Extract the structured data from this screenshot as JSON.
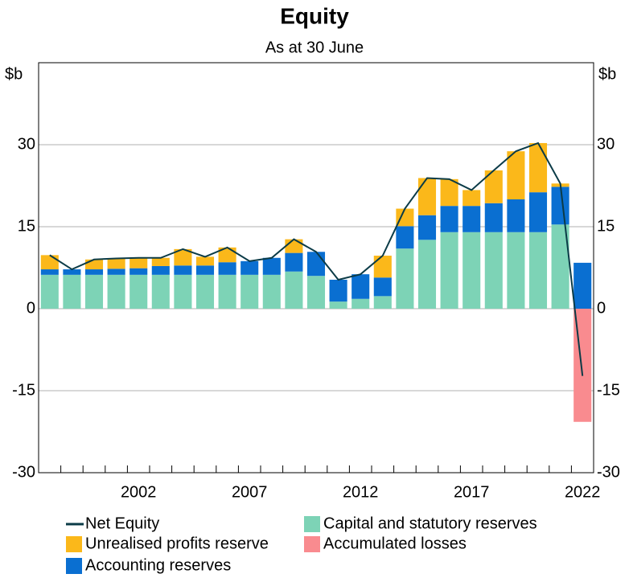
{
  "chart_data": {
    "type": "stacked_bar_line",
    "title": "Equity",
    "subtitle": "As at 30 June",
    "y_label": "$b",
    "categories": [
      null,
      null,
      null,
      null,
      "2002",
      null,
      null,
      null,
      null,
      "2007",
      null,
      null,
      null,
      null,
      "2012",
      null,
      null,
      null,
      null,
      "2017",
      null,
      null,
      null,
      null,
      "2022"
    ],
    "ylim": [
      -30,
      45
    ],
    "yticks": [
      -30,
      -15,
      0,
      15,
      30
    ],
    "series": [
      {
        "name": "Capital and statutory reserves",
        "color": "#7dd3b6",
        "values": [
          6.2,
          6.2,
          6.2,
          6.2,
          6.2,
          6.2,
          6.2,
          6.2,
          6.2,
          6.2,
          6.2,
          6.8,
          6.0,
          1.3,
          1.8,
          2.3,
          11.0,
          12.6,
          14.0,
          14.0,
          14.0,
          14.0,
          14.0,
          15.4,
          0
        ]
      },
      {
        "name": "Accounting reserves",
        "color": "#0a6fd1",
        "values": [
          1.0,
          1.0,
          1.0,
          1.1,
          1.2,
          1.6,
          1.7,
          1.7,
          2.3,
          2.5,
          3.1,
          3.4,
          4.4,
          4.0,
          4.5,
          3.4,
          4.1,
          4.5,
          4.8,
          4.8,
          5.3,
          6.0,
          7.3,
          6.9,
          8.4
        ]
      },
      {
        "name": "Unrealised profits reserve",
        "color": "#fbb81a",
        "values": [
          2.6,
          0,
          1.8,
          1.9,
          1.9,
          1.5,
          3.0,
          1.6,
          2.7,
          0,
          0,
          2.5,
          0,
          0,
          0,
          4.0,
          3.2,
          6.8,
          4.9,
          2.9,
          6.0,
          8.8,
          9.0,
          0.6,
          0
        ]
      },
      {
        "name": "Accumulated losses",
        "color": "#f98b8f",
        "values": [
          0,
          0,
          0,
          0,
          0,
          0,
          0,
          0,
          0,
          0,
          0,
          0,
          0,
          0,
          0,
          0,
          0,
          0,
          0,
          0,
          0,
          0,
          0,
          0,
          -20.7
        ]
      },
      {
        "name": "Net Equity",
        "type": "line",
        "color": "#0b3b47",
        "values": [
          9.8,
          7.2,
          9.0,
          9.2,
          9.3,
          9.3,
          10.9,
          9.5,
          11.2,
          8.7,
          9.3,
          12.7,
          10.4,
          5.3,
          6.3,
          9.7,
          18.3,
          23.9,
          23.7,
          21.7,
          25.3,
          28.8,
          30.3,
          22.9,
          -12.3
        ]
      }
    ]
  }
}
